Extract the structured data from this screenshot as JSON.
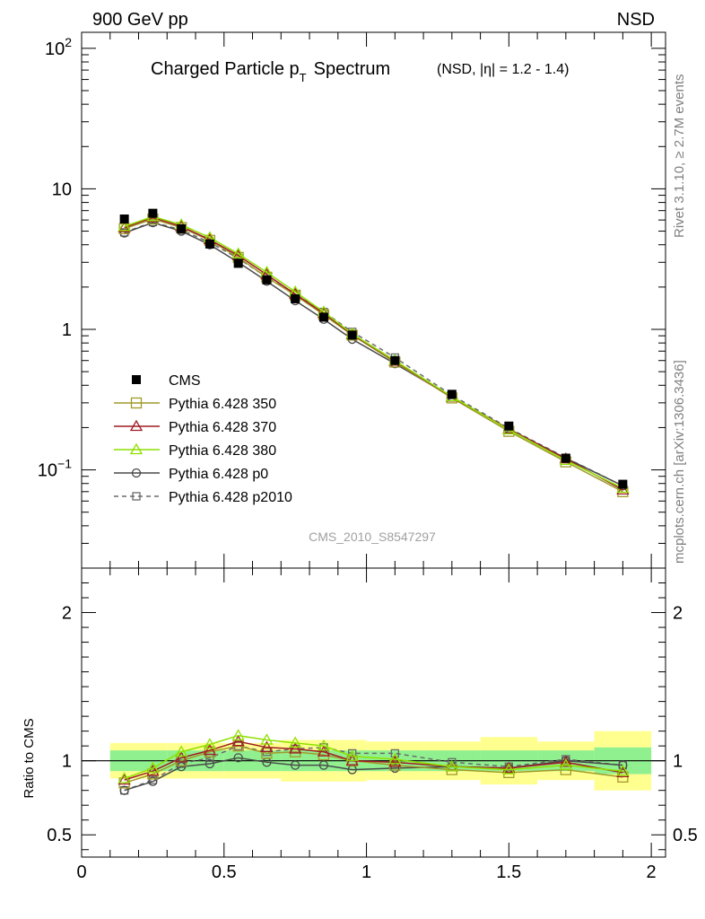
{
  "header": {
    "left": "900 GeV pp",
    "right": "NSD"
  },
  "side_labels": {
    "rivet": "Rivet 3.1.10, ≥ 2.7M events",
    "mcplots": "mcplots.cern.ch [arXiv:1306.3436]"
  },
  "colors": {
    "cms": "#000000",
    "p350": "#a09a2a",
    "p370": "#a01c24",
    "p380": "#8ee000",
    "p0": "#4a4a4a",
    "p2010": "#6a6a6a",
    "band_inner": "#90f090",
    "band_outer": "#ffff90"
  },
  "chart_data": [
    {
      "type": "line",
      "title": "Charged Particle p",
      "title_sub": "T",
      "title_tail": "Spectrum",
      "title_small": "(NSD, |η| = 1.2 - 1.4)",
      "watermark": "CMS_2010_S8547297",
      "xlim": [
        0,
        2.05
      ],
      "ylim": [
        0.02,
        130
      ],
      "yscale": "log",
      "ytick_labels": [
        "10−1",
        "1",
        "10",
        "102"
      ],
      "legend_placement": "bottom-left",
      "x": [
        0.15,
        0.25,
        0.35,
        0.45,
        0.55,
        0.65,
        0.75,
        0.85,
        0.95,
        1.1,
        1.3,
        1.5,
        1.7,
        1.9
      ],
      "series": [
        {
          "name": "CMS",
          "key": "cms",
          "marker": "filled-square",
          "values": [
            6.1,
            6.7,
            5.2,
            4.05,
            2.95,
            2.25,
            1.65,
            1.22,
            0.91,
            0.6,
            0.345,
            0.205,
            0.121,
            0.079
          ]
        },
        {
          "name": "Pythia 6.428 350",
          "key": "p350",
          "marker": "open-square",
          "values": [
            5.2,
            6.1,
            5.3,
            4.3,
            3.25,
            2.35,
            1.75,
            1.27,
            0.91,
            0.585,
            0.325,
            0.188,
            0.114,
            0.07
          ]
        },
        {
          "name": "Pythia 6.428 370",
          "key": "p370",
          "marker": "open-triangle",
          "values": [
            5.3,
            6.25,
            5.4,
            4.35,
            3.35,
            2.45,
            1.78,
            1.3,
            0.92,
            0.595,
            0.33,
            0.195,
            0.12,
            0.072
          ]
        },
        {
          "name": "Pythia 6.428 380",
          "key": "p380",
          "marker": "open-triangle",
          "values": [
            5.4,
            6.35,
            5.55,
            4.5,
            3.45,
            2.55,
            1.85,
            1.33,
            0.93,
            0.6,
            0.332,
            0.193,
            0.117,
            0.074
          ]
        },
        {
          "name": "Pythia 6.428 p0",
          "key": "p0",
          "marker": "open-circle",
          "values": [
            4.85,
            5.75,
            5.0,
            4.0,
            3.0,
            2.2,
            1.6,
            1.18,
            0.85,
            0.57,
            0.33,
            0.195,
            0.121,
            0.077
          ]
        },
        {
          "name": "Pythia 6.428 p2010",
          "key": "p2010",
          "marker": "open-square-small",
          "dashed": true,
          "values": [
            4.9,
            5.8,
            5.1,
            4.15,
            3.2,
            2.35,
            1.78,
            1.33,
            0.96,
            0.63,
            0.34,
            0.198,
            0.122,
            0.077
          ]
        }
      ]
    },
    {
      "type": "line",
      "ylabel": "Ratio to CMS",
      "xlim": [
        0,
        2.05
      ],
      "ylim": [
        0.35,
        2.3
      ],
      "xtick_labels": [
        "0",
        "0.5",
        "1",
        "1.5",
        "2"
      ],
      "ytick_labels": [
        "0.5",
        "1",
        "2"
      ],
      "x": [
        0.15,
        0.25,
        0.35,
        0.45,
        0.55,
        0.65,
        0.75,
        0.85,
        0.95,
        1.1,
        1.3,
        1.5,
        1.7,
        1.9
      ],
      "bands": {
        "edges": [
          0.1,
          0.2,
          0.3,
          0.4,
          0.5,
          0.6,
          0.7,
          0.8,
          0.9,
          1.0,
          1.2,
          1.4,
          1.6,
          1.8,
          2.0
        ],
        "inner": [
          0.07,
          0.07,
          0.07,
          0.07,
          0.07,
          0.07,
          0.07,
          0.07,
          0.07,
          0.07,
          0.07,
          0.07,
          0.07,
          0.09
        ],
        "outer": [
          0.12,
          0.12,
          0.12,
          0.12,
          0.12,
          0.12,
          0.14,
          0.14,
          0.14,
          0.13,
          0.13,
          0.16,
          0.13,
          0.2
        ]
      },
      "series": [
        {
          "name": "Pythia 6.428 350",
          "key": "p350",
          "marker": "open-square",
          "values": [
            0.85,
            0.91,
            1.0,
            1.06,
            1.1,
            1.05,
            1.06,
            1.04,
            1.0,
            0.97,
            0.94,
            0.92,
            0.94,
            0.89
          ]
        },
        {
          "name": "Pythia 6.428 370",
          "key": "p370",
          "marker": "open-triangle",
          "values": [
            0.87,
            0.93,
            1.02,
            1.07,
            1.13,
            1.09,
            1.08,
            1.06,
            1.0,
            0.99,
            0.96,
            0.95,
            0.99,
            0.92
          ]
        },
        {
          "name": "Pythia 6.428 380",
          "key": "p380",
          "marker": "open-triangle",
          "values": [
            0.88,
            0.95,
            1.06,
            1.11,
            1.17,
            1.14,
            1.12,
            1.1,
            1.03,
            1.01,
            0.96,
            0.94,
            0.97,
            0.93
          ]
        },
        {
          "name": "Pythia 6.428 p0",
          "key": "p0",
          "marker": "open-circle",
          "values": [
            0.8,
            0.86,
            0.96,
            0.98,
            1.02,
            0.99,
            0.97,
            0.97,
            0.94,
            0.95,
            0.96,
            0.95,
            1.0,
            0.97
          ]
        },
        {
          "name": "Pythia 6.428 p2010",
          "key": "p2010",
          "marker": "open-square-small",
          "dashed": true,
          "values": [
            0.8,
            0.87,
            0.98,
            1.02,
            1.1,
            1.06,
            1.08,
            1.09,
            1.05,
            1.05,
            0.99,
            0.96,
            1.01,
            0.97
          ]
        }
      ]
    }
  ]
}
